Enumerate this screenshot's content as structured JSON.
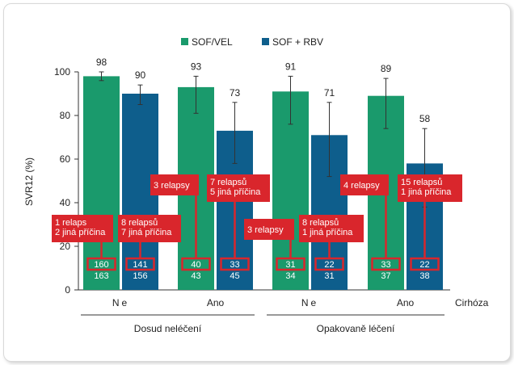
{
  "chart_data": {
    "type": "bar",
    "title": "",
    "ylabel": "SVR12 (%)",
    "ylim": [
      0,
      100
    ],
    "yticks": [
      0,
      20,
      40,
      60,
      80,
      100
    ],
    "grid": false,
    "legend_position": "top-center",
    "x_axis_caption": "Cirhóza",
    "colors": {
      "SOF/VEL": "#1a9a6c",
      "SOF + RBV": "#0e5e8c",
      "annotation": "#d9262c"
    },
    "groups": [
      {
        "label": "Dosud neléčení",
        "categories": [
          "Ne",
          "Ano"
        ]
      },
      {
        "label": "Opakovaně léčení",
        "categories": [
          "Ne",
          "Ano"
        ]
      }
    ],
    "categories": [
      "Ne",
      "Ano",
      "Ne",
      "Ano"
    ],
    "series": [
      {
        "name": "SOF/VEL",
        "values": [
          98,
          93,
          91,
          89
        ],
        "error_low": [
          96,
          81,
          76,
          74
        ],
        "error_high": [
          100,
          98,
          98,
          97
        ],
        "n_responders": [
          "160",
          "40",
          "31",
          "33"
        ],
        "n_total": [
          "163",
          "43",
          "34",
          "37"
        ],
        "failure_notes": [
          [
            "1 relaps",
            "2 jiná příčina"
          ],
          [
            "3 relapsy"
          ],
          [
            "3 relapsy"
          ],
          [
            "4 relapsy"
          ]
        ]
      },
      {
        "name": "SOF + RBV",
        "values": [
          90,
          73,
          71,
          58
        ],
        "error_low": [
          85,
          58,
          52,
          38
        ],
        "error_high": [
          94,
          86,
          86,
          74
        ],
        "n_responders": [
          "141",
          "33",
          "22",
          "22"
        ],
        "n_total": [
          "156",
          "45",
          "31",
          "38"
        ],
        "failure_notes": [
          [
            "8 relapsů",
            "7 jiná příčina"
          ],
          [
            "7 relapsů",
            "5 jiná příčina"
          ],
          [
            "8 relapsů",
            "1 jiná příčina"
          ],
          [
            "15 relapsů",
            "1 jiná příčina"
          ]
        ]
      }
    ]
  }
}
